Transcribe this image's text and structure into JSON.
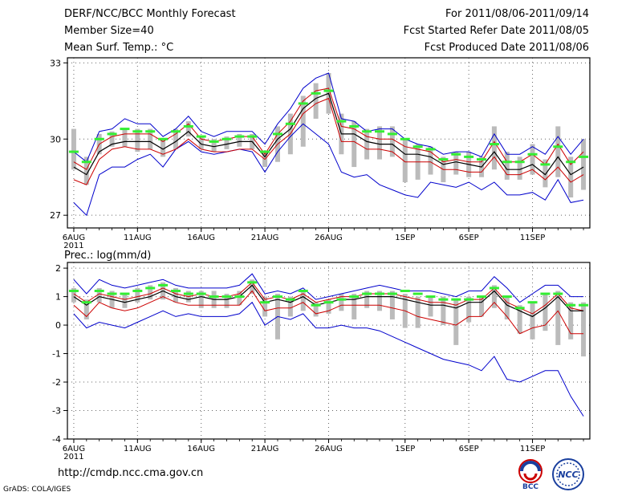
{
  "header": {
    "left_lines": [
      "DERF/NCC/BCC Monthly Forecast",
      "Member Size=40",
      "Mean Surf. Temp.: °C"
    ],
    "right_lines": [
      "For 2011/08/06-2011/09/14",
      "Fcst Started Refer Date 2011/08/05",
      "Fcst Produced Date 2011/08/06"
    ]
  },
  "footer": {
    "url": "http://cmdp.ncc.cma.gov.cn",
    "grads": "GrADS: COLA/IGES",
    "logo_bcc_text": "BCC",
    "logo_ncc_text": "NCC"
  },
  "colors": {
    "ensemble_mean": "#000000",
    "std_band": "#cc0000",
    "min_max": "#0000cc",
    "median_mark": "#33ee33",
    "spread_bar": "#bbbbbb",
    "grid": "#666666"
  },
  "chart_data": [
    {
      "type": "line",
      "title": "Mean Surf. Temp.: °C",
      "ylim": [
        26.5,
        33.2
      ],
      "yticks": [
        27,
        30,
        33
      ],
      "ytick_labels": [
        "27",
        "30",
        "33"
      ],
      "xlim": [
        0.5,
        41.5
      ],
      "xtick_labels": [
        "6AUG\n2011",
        "11AUG",
        "16AUG",
        "21AUG",
        "26AUG",
        "1SEP",
        "6SEP",
        "11SEP"
      ],
      "xticks": [
        1,
        6,
        11,
        16,
        21,
        27,
        32,
        37
      ],
      "grid": true,
      "series": [
        {
          "name": "mean",
          "values": [
            28.9,
            28.6,
            29.5,
            29.8,
            29.9,
            29.9,
            29.9,
            29.6,
            29.9,
            30.3,
            29.8,
            29.7,
            29.8,
            29.9,
            29.9,
            29.3,
            30.0,
            30.4,
            31.2,
            31.6,
            31.8,
            30.2,
            30.2,
            29.9,
            29.8,
            29.8,
            29.4,
            29.4,
            29.3,
            29.0,
            29.1,
            29.0,
            28.9,
            29.5,
            28.8,
            28.8,
            29.0,
            28.6,
            29.3,
            28.6,
            28.9
          ]
        },
        {
          "name": "upper",
          "values": [
            29.1,
            28.8,
            29.8,
            30.1,
            30.2,
            30.2,
            30.2,
            29.9,
            30.2,
            30.6,
            30.0,
            29.9,
            30.0,
            30.1,
            30.1,
            29.4,
            30.2,
            30.7,
            31.5,
            31.9,
            32.0,
            30.5,
            30.4,
            30.1,
            30.0,
            30.0,
            29.7,
            29.6,
            29.5,
            29.1,
            29.2,
            29.1,
            29.1,
            29.9,
            29.1,
            29.1,
            29.4,
            29.0,
            29.8,
            29.0,
            29.5
          ]
        },
        {
          "name": "lower",
          "values": [
            28.4,
            28.2,
            29.2,
            29.6,
            29.7,
            29.6,
            29.6,
            29.4,
            29.6,
            30.0,
            29.6,
            29.5,
            29.5,
            29.6,
            29.6,
            29.2,
            29.8,
            30.2,
            31.0,
            31.4,
            31.6,
            29.9,
            29.9,
            29.6,
            29.6,
            29.5,
            29.1,
            29.1,
            29.1,
            28.8,
            28.8,
            28.7,
            28.7,
            29.3,
            28.6,
            28.6,
            28.8,
            28.4,
            28.9,
            28.3,
            28.6
          ]
        },
        {
          "name": "max",
          "values": [
            29.5,
            29.1,
            30.3,
            30.4,
            30.8,
            30.6,
            30.6,
            30.1,
            30.4,
            30.9,
            30.3,
            30.1,
            30.3,
            30.3,
            30.3,
            29.8,
            30.6,
            31.2,
            32.0,
            32.4,
            32.6,
            30.8,
            30.7,
            30.3,
            30.4,
            30.4,
            30.0,
            29.8,
            29.7,
            29.4,
            29.5,
            29.5,
            29.3,
            30.2,
            29.4,
            29.4,
            29.7,
            29.4,
            30.1,
            29.4,
            30.0
          ]
        },
        {
          "name": "min",
          "values": [
            27.5,
            27.0,
            28.6,
            28.9,
            28.9,
            29.2,
            29.4,
            28.9,
            29.6,
            29.9,
            29.5,
            29.4,
            29.5,
            29.6,
            29.5,
            28.7,
            29.5,
            30.1,
            30.6,
            30.2,
            29.8,
            28.7,
            28.5,
            28.6,
            28.2,
            28.0,
            27.8,
            27.7,
            28.3,
            28.2,
            28.1,
            28.3,
            28.0,
            28.3,
            27.8,
            27.8,
            27.9,
            27.6,
            28.4,
            27.5,
            27.6
          ]
        },
        {
          "name": "median_mark",
          "values": [
            29.5,
            29.1,
            30.0,
            30.2,
            30.4,
            30.3,
            30.3,
            30.0,
            30.3,
            30.5,
            30.1,
            29.9,
            30.0,
            30.1,
            30.1,
            29.5,
            30.2,
            30.6,
            31.4,
            31.8,
            31.9,
            30.7,
            30.5,
            30.3,
            30.3,
            30.2,
            30.0,
            29.7,
            29.6,
            29.2,
            29.4,
            29.3,
            29.2,
            29.8,
            29.1,
            29.1,
            29.4,
            29.0,
            29.7,
            29.1,
            29.3
          ]
        },
        {
          "name": "bar_top",
          "values": [
            30.4,
            29.3,
            30.2,
            30.3,
            30.4,
            30.4,
            30.4,
            30.0,
            30.4,
            30.7,
            30.1,
            30.0,
            30.1,
            30.2,
            30.2,
            29.5,
            30.5,
            31.0,
            31.7,
            32.2,
            32.6,
            31.0,
            30.7,
            30.4,
            30.5,
            30.5,
            30.0,
            29.8,
            29.7,
            29.3,
            29.5,
            29.5,
            29.3,
            30.5,
            29.5,
            29.3,
            29.8,
            29.2,
            30.5,
            29.3,
            30.0
          ]
        },
        {
          "name": "bar_bottom",
          "values": [
            28.8,
            28.2,
            29.4,
            29.7,
            29.7,
            29.5,
            29.6,
            29.3,
            29.6,
            30.1,
            29.6,
            29.5,
            29.6,
            29.7,
            29.6,
            28.9,
            29.1,
            29.4,
            29.7,
            30.8,
            31.0,
            29.4,
            28.9,
            29.2,
            29.2,
            29.3,
            28.3,
            28.4,
            28.6,
            28.3,
            28.6,
            28.5,
            28.5,
            28.8,
            28.4,
            28.4,
            28.6,
            28.1,
            28.5,
            27.7,
            28.0
          ]
        }
      ]
    },
    {
      "type": "line",
      "title": "Prec.: log(mm/d)",
      "ylim": [
        -4,
        2.2
      ],
      "yticks": [
        -4,
        -3,
        -2,
        -1,
        0,
        1,
        2
      ],
      "ytick_labels": [
        "-4",
        "-3",
        "-2",
        "-1",
        "0",
        "1",
        "2"
      ],
      "xlim": [
        0.5,
        41.5
      ],
      "xtick_labels": [
        "6AUG\n2011",
        "11AUG",
        "16AUG",
        "21AUG",
        "26AUG",
        "1SEP",
        "6SEP",
        "11SEP"
      ],
      "xticks": [
        1,
        6,
        11,
        16,
        21,
        27,
        32,
        37
      ],
      "grid": true,
      "prec_label": "Prec.: log(mm/d)",
      "series": [
        {
          "name": "mean",
          "values": [
            1.0,
            0.7,
            1.0,
            0.9,
            0.8,
            0.9,
            1.0,
            1.2,
            1.0,
            0.9,
            1.0,
            0.9,
            0.9,
            1.0,
            1.4,
            0.8,
            0.9,
            0.8,
            1.0,
            0.7,
            0.8,
            0.9,
            0.9,
            1.0,
            1.0,
            1.0,
            0.9,
            0.8,
            0.7,
            0.7,
            0.6,
            0.8,
            0.8,
            1.2,
            0.7,
            0.5,
            0.3,
            0.6,
            1.0,
            0.5,
            0.5
          ]
        },
        {
          "name": "upper",
          "values": [
            1.1,
            0.8,
            1.1,
            1.0,
            0.9,
            1.0,
            1.1,
            1.3,
            1.1,
            1.0,
            1.1,
            1.0,
            1.0,
            1.1,
            1.5,
            0.9,
            1.0,
            0.9,
            1.1,
            0.8,
            0.9,
            1.0,
            1.0,
            1.1,
            1.1,
            1.1,
            1.0,
            0.9,
            0.8,
            0.8,
            0.7,
            0.9,
            0.9,
            1.3,
            0.8,
            0.6,
            0.4,
            0.7,
            1.1,
            0.6,
            0.5
          ]
        },
        {
          "name": "lower",
          "values": [
            0.7,
            0.3,
            0.8,
            0.6,
            0.5,
            0.6,
            0.8,
            1.0,
            0.8,
            0.7,
            0.7,
            0.7,
            0.7,
            0.7,
            1.2,
            0.5,
            0.6,
            0.6,
            0.8,
            0.4,
            0.5,
            0.7,
            0.7,
            0.7,
            0.7,
            0.6,
            0.5,
            0.3,
            0.2,
            0.1,
            0.0,
            0.3,
            0.3,
            0.8,
            0.3,
            -0.3,
            -0.1,
            0.0,
            0.5,
            -0.3,
            -0.3
          ]
        },
        {
          "name": "max",
          "values": [
            1.6,
            1.1,
            1.6,
            1.4,
            1.3,
            1.4,
            1.5,
            1.6,
            1.4,
            1.3,
            1.3,
            1.3,
            1.3,
            1.4,
            1.8,
            1.1,
            1.2,
            1.1,
            1.3,
            0.9,
            1.0,
            1.1,
            1.2,
            1.3,
            1.4,
            1.3,
            1.2,
            1.2,
            1.2,
            1.1,
            1.0,
            1.2,
            1.2,
            1.7,
            1.3,
            0.8,
            1.1,
            1.4,
            1.4,
            1.0,
            1.0
          ]
        },
        {
          "name": "min",
          "values": [
            0.4,
            -0.1,
            0.1,
            0.0,
            -0.1,
            0.1,
            0.3,
            0.5,
            0.3,
            0.4,
            0.3,
            0.3,
            0.3,
            0.4,
            0.8,
            0.0,
            0.3,
            0.2,
            0.4,
            -0.1,
            -0.1,
            0.0,
            -0.1,
            -0.1,
            -0.2,
            -0.4,
            -0.6,
            -0.8,
            -1.0,
            -1.2,
            -1.3,
            -1.4,
            -1.6,
            -1.1,
            -1.9,
            -2.0,
            -1.8,
            -1.6,
            -1.6,
            -2.5,
            -3.2
          ]
        },
        {
          "name": "median_mark",
          "values": [
            1.2,
            0.8,
            1.2,
            1.1,
            1.1,
            1.2,
            1.3,
            1.4,
            1.2,
            1.1,
            1.1,
            1.0,
            1.0,
            1.0,
            1.5,
            0.8,
            1.0,
            0.9,
            1.2,
            0.7,
            0.8,
            0.9,
            1.0,
            1.1,
            1.1,
            1.1,
            1.2,
            1.1,
            1.0,
            0.9,
            0.9,
            0.9,
            1.0,
            1.3,
            1.0,
            0.6,
            0.8,
            1.1,
            1.1,
            0.7,
            0.7
          ]
        },
        {
          "name": "bar_top",
          "values": [
            1.3,
            0.9,
            1.3,
            1.2,
            1.1,
            1.3,
            1.4,
            1.5,
            1.3,
            1.2,
            1.2,
            1.2,
            1.1,
            1.2,
            1.6,
            1.0,
            1.1,
            1.0,
            1.2,
            0.8,
            0.9,
            1.1,
            1.1,
            1.2,
            1.2,
            1.2,
            1.1,
            1.0,
            1.0,
            1.0,
            0.9,
            1.0,
            1.0,
            1.4,
            1.0,
            0.7,
            0.8,
            1.1,
            1.2,
            0.8,
            0.8
          ]
        },
        {
          "name": "bar_bottom",
          "values": [
            0.8,
            0.2,
            0.8,
            0.6,
            0.6,
            0.8,
            0.9,
            0.9,
            0.8,
            0.8,
            0.6,
            0.6,
            0.6,
            0.7,
            1.1,
            0.3,
            -0.5,
            0.3,
            0.5,
            0.3,
            0.4,
            0.5,
            0.2,
            0.6,
            0.5,
            0.2,
            -0.1,
            -0.1,
            0.3,
            0.0,
            -0.7,
            0.1,
            0.3,
            0.6,
            0.2,
            -0.3,
            -0.5,
            -0.2,
            -0.7,
            -0.5,
            -1.1
          ]
        }
      ]
    }
  ]
}
